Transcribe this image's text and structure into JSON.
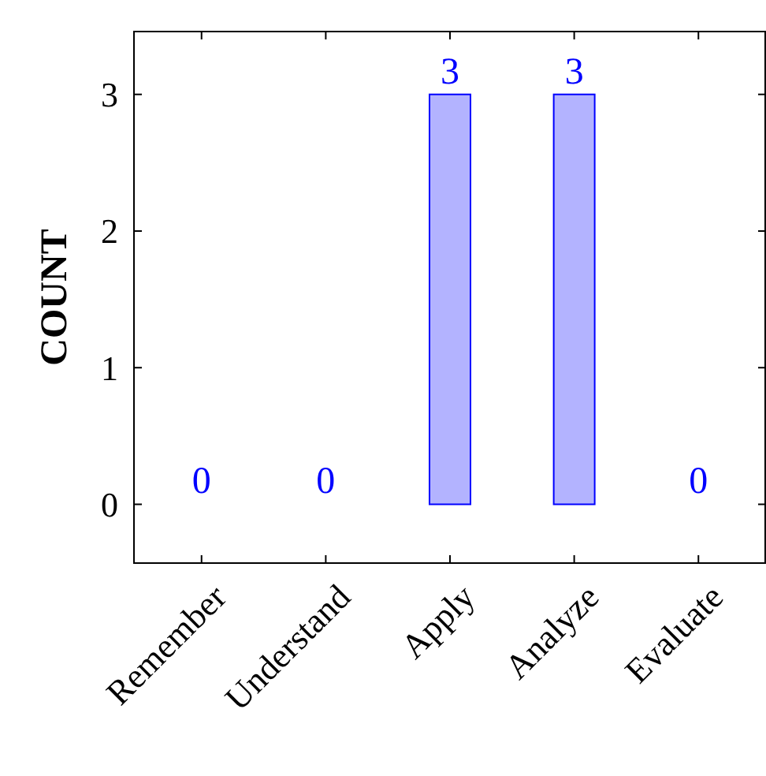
{
  "chart_data": {
    "type": "bar",
    "ylabel": "COUNT",
    "categories": [
      "Remember",
      "Understand",
      "Apply",
      "Analyze",
      "Evaluate"
    ],
    "values": [
      0,
      0,
      3,
      3,
      0
    ],
    "color": "#b3b3ff",
    "ylim": [
      -0.43,
      3.46
    ],
    "yticks": [
      0,
      1,
      2,
      3
    ],
    "grid": false,
    "data_labels": true
  }
}
